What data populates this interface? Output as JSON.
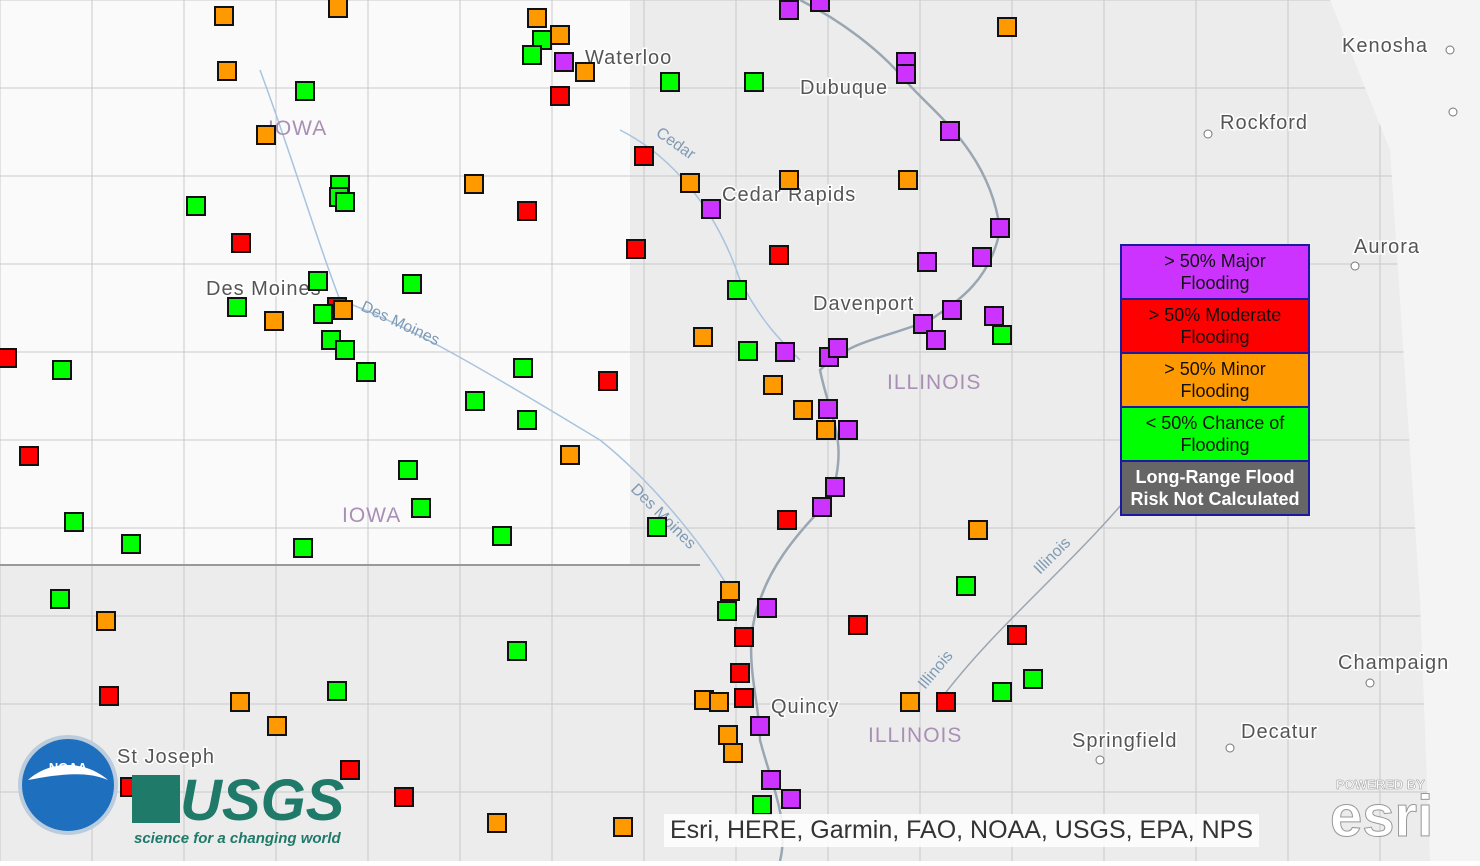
{
  "map": {
    "places": [
      "Waterloo",
      "Dubuque",
      "Kenosha",
      "Rockford",
      "Cedar Rapids",
      "Aurora",
      "Des Moines",
      "Davenport",
      "Quincy",
      "Champaign",
      "Springfield",
      "Decatur",
      "St Joseph"
    ],
    "regions": [
      "IOWA",
      "IOWA",
      "ILLINOIS",
      "ILLINOIS"
    ],
    "rivers": [
      "Cedar",
      "Des Moines",
      "Des Moines",
      "Illinois",
      "Illinois"
    ],
    "legend": [
      {
        "label": "> 50% Major Flooding",
        "color": "#cc33ff"
      },
      {
        "label": "> 50% Moderate Flooding",
        "color": "#ff0000"
      },
      {
        "label": "> 50% Minor Flooding",
        "color": "#ff9900"
      },
      {
        "label": "< 50% Chance of Flooding",
        "color": "#00ff00"
      },
      {
        "label": "Long-Range Flood Risk Not Calculated",
        "color": "#666666"
      }
    ],
    "attribution": "Esri, HERE, Garmin, FAO, NOAA, USGS, EPA, NPS",
    "logos": {
      "noaa": "NOAA",
      "usgs": "USGS",
      "usgs_tagline": "science for a changing world",
      "esri_powered": "POWERED BY",
      "esri": "esri"
    }
  }
}
